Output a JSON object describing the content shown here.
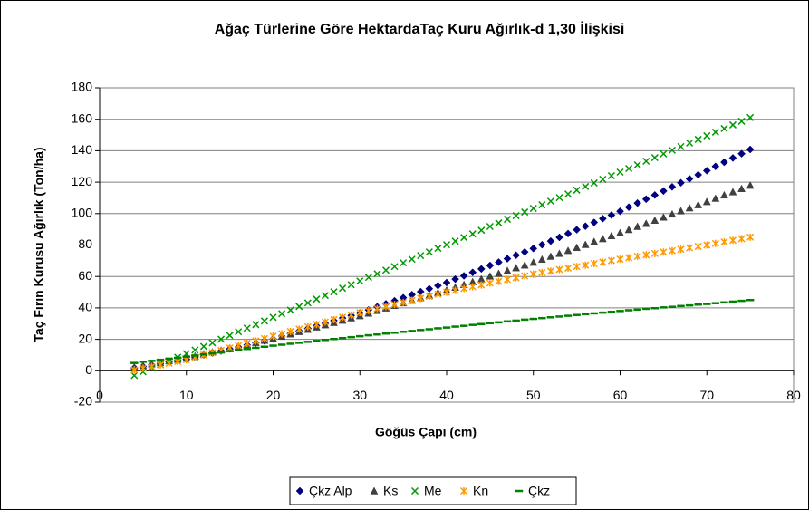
{
  "chart_data": {
    "type": "scatter",
    "title": "Ağaç Türlerine Göre HektardaTaç Kuru Ağırlık-d 1,30 İlişkisi",
    "xlabel": "Göğüs Çapı (cm)",
    "ylabel": "Taç Fırın Kurusu Ağırlık (Ton/ha)",
    "xlim": [
      0,
      80
    ],
    "xticks": [
      0,
      10,
      20,
      30,
      40,
      50,
      60,
      70,
      80
    ],
    "ylim": [
      -20,
      180
    ],
    "yticks": [
      -20,
      0,
      20,
      40,
      60,
      80,
      100,
      120,
      140,
      160,
      180
    ],
    "grid": true,
    "legend": "bottom",
    "x": [
      4,
      5,
      6,
      7,
      8,
      9,
      10,
      11,
      12,
      13,
      14,
      15,
      16,
      17,
      18,
      19,
      20,
      21,
      22,
      23,
      24,
      25,
      26,
      27,
      28,
      29,
      30,
      31,
      32,
      33,
      34,
      35,
      36,
      37,
      38,
      39,
      40,
      41,
      42,
      43,
      44,
      45,
      46,
      47,
      48,
      49,
      50,
      51,
      52,
      53,
      54,
      55,
      56,
      57,
      58,
      59,
      60,
      61,
      62,
      63,
      64,
      65,
      66,
      67,
      68,
      69,
      70,
      71,
      72,
      73,
      74,
      75
    ],
    "series": [
      {
        "name": "Çkz Alp",
        "color": "#000080",
        "marker": "diamond",
        "values": [
          1.9,
          2.8,
          3.7,
          4.7,
          5.6,
          6.5,
          7.4,
          8.7,
          10.0,
          11.3,
          12.6,
          13.9,
          15.1,
          16.4,
          17.7,
          19.0,
          20.3,
          22.0,
          23.6,
          25.3,
          26.9,
          28.6,
          30.2,
          31.9,
          33.5,
          35.2,
          36.8,
          38.7,
          40.7,
          42.6,
          44.5,
          46.5,
          48.4,
          50.3,
          52.2,
          54.2,
          56.1,
          58.3,
          60.4,
          62.6,
          64.8,
          67.0,
          69.1,
          71.3,
          73.5,
          75.6,
          77.8,
          80.2,
          82.5,
          84.9,
          87.3,
          89.7,
          92.0,
          94.4,
          96.8,
          99.1,
          101.5,
          104.1,
          106.7,
          109.2,
          111.8,
          114.4,
          117.0,
          119.6,
          122.1,
          124.7,
          127.3,
          130.0,
          132.7,
          135.4,
          138.1,
          140.8
        ]
      },
      {
        "name": "Ks",
        "color": "#404040",
        "marker": "triangle",
        "values": [
          2.4,
          3.4,
          4.3,
          5.3,
          6.3,
          7.2,
          8.2,
          9.4,
          10.7,
          11.9,
          13.1,
          14.4,
          15.6,
          16.8,
          18.0,
          19.3,
          20.5,
          22.0,
          23.4,
          24.9,
          26.3,
          27.8,
          29.2,
          30.7,
          32.1,
          33.6,
          35.0,
          36.6,
          38.3,
          39.9,
          41.5,
          43.2,
          44.8,
          46.4,
          48.0,
          49.7,
          51.3,
          53.1,
          54.8,
          56.6,
          58.4,
          60.2,
          61.9,
          63.7,
          65.5,
          67.2,
          69.0,
          70.9,
          72.8,
          74.6,
          76.5,
          78.4,
          80.3,
          82.2,
          84.0,
          85.9,
          87.8,
          89.8,
          91.8,
          93.7,
          95.7,
          97.7,
          99.7,
          101.7,
          103.6,
          105.6,
          107.6,
          109.7,
          111.8,
          113.8,
          115.9,
          118.0
        ]
      },
      {
        "name": "Me",
        "color": "#009900",
        "marker": "x",
        "values": [
          -3.0,
          -0.7,
          1.7,
          4.0,
          6.3,
          8.6,
          10.9,
          13.2,
          15.5,
          17.8,
          20.1,
          22.5,
          24.8,
          27.1,
          29.4,
          31.7,
          34.0,
          36.3,
          38.6,
          40.9,
          43.2,
          45.6,
          47.9,
          50.2,
          52.5,
          54.8,
          57.1,
          59.4,
          61.7,
          64.0,
          66.3,
          68.7,
          71.0,
          73.3,
          75.6,
          77.9,
          80.2,
          82.5,
          84.8,
          87.1,
          89.4,
          91.8,
          94.1,
          96.4,
          98.7,
          101.0,
          103.3,
          105.6,
          107.9,
          110.2,
          112.5,
          114.9,
          117.2,
          119.5,
          121.8,
          124.1,
          126.4,
          128.7,
          131.0,
          133.3,
          135.6,
          138.0,
          140.3,
          142.6,
          144.9,
          147.2,
          149.5,
          151.8,
          154.1,
          156.4,
          158.7,
          161.1
        ]
      },
      {
        "name": "Kn",
        "color": "#ff9900",
        "marker": "star",
        "values": [
          0.5,
          1.6,
          2.7,
          3.7,
          4.8,
          5.9,
          7.0,
          8.5,
          10.0,
          11.5,
          13.0,
          14.5,
          16.0,
          17.5,
          19.0,
          20.5,
          22.0,
          23.5,
          25.0,
          26.5,
          28.0,
          29.5,
          31.0,
          32.5,
          34.0,
          35.5,
          37.0,
          38.3,
          39.6,
          40.9,
          42.2,
          43.5,
          44.8,
          46.1,
          47.4,
          48.7,
          50.0,
          51.2,
          52.3,
          53.5,
          54.6,
          55.8,
          56.9,
          58.1,
          59.2,
          60.4,
          61.5,
          62.5,
          63.4,
          64.4,
          65.3,
          66.3,
          67.2,
          68.2,
          69.1,
          70.1,
          71.0,
          71.9,
          72.8,
          73.7,
          74.6,
          75.5,
          76.4,
          77.3,
          78.2,
          79.1,
          80.0,
          81.0,
          82.0,
          83.0,
          84.0,
          85.0
        ]
      },
      {
        "name": "Çkz",
        "color": "#008000",
        "marker": "dash",
        "values": [
          5.0,
          5.7,
          6.3,
          7.0,
          7.7,
          8.3,
          9.0,
          9.7,
          10.4,
          11.1,
          11.8,
          12.5,
          13.2,
          13.9,
          14.6,
          15.3,
          16.0,
          16.6,
          17.2,
          17.8,
          18.4,
          19.0,
          19.6,
          20.2,
          20.8,
          21.4,
          22.0,
          22.6,
          23.1,
          23.7,
          24.2,
          24.8,
          25.3,
          25.9,
          26.4,
          27.0,
          27.5,
          28.1,
          28.6,
          29.2,
          29.7,
          30.3,
          30.8,
          31.4,
          31.9,
          32.5,
          33.0,
          33.5,
          34.0,
          34.5,
          35.0,
          35.5,
          36.0,
          36.5,
          37.0,
          37.5,
          38.0,
          38.5,
          38.9,
          39.4,
          39.8,
          40.3,
          40.7,
          41.2,
          41.6,
          42.1,
          42.5,
          43.0,
          43.5,
          44.0,
          44.5,
          45.0
        ]
      }
    ]
  }
}
